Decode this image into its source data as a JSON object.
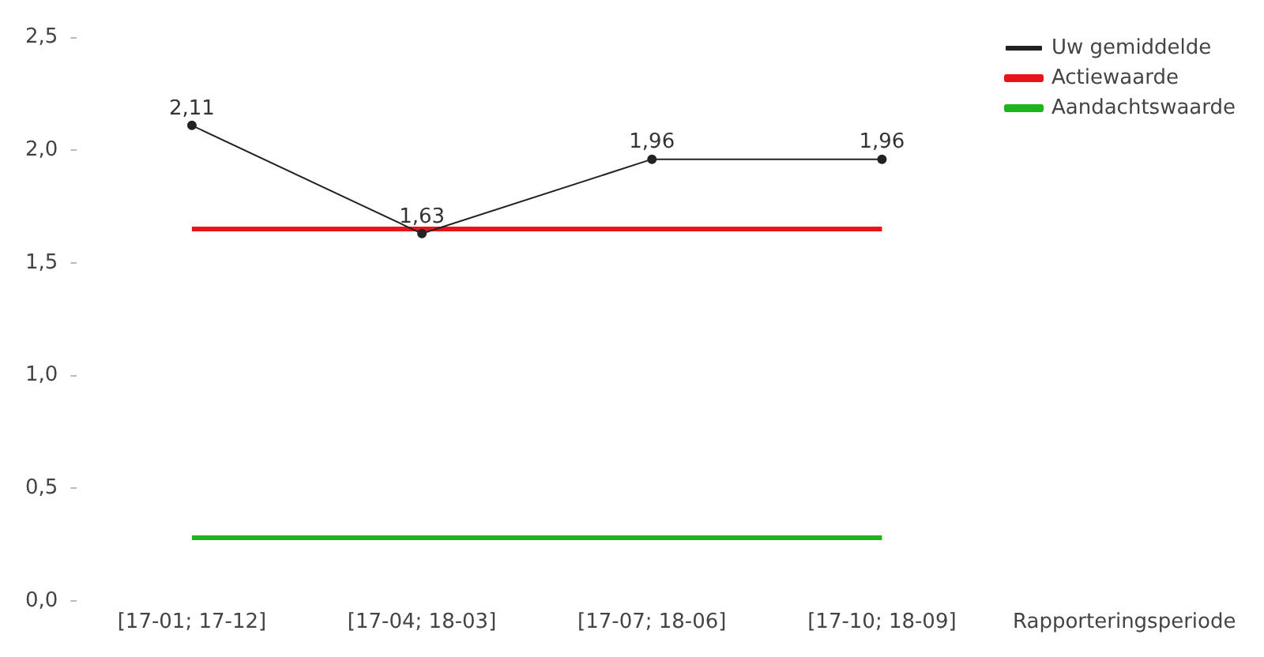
{
  "chart_data": {
    "type": "line",
    "xlabel": "Rapporteringsperiode",
    "categories": [
      "[17-01; 17-12]",
      "[17-04; 18-03]",
      "[17-07; 18-06]",
      "[17-10; 18-09]"
    ],
    "series": [
      {
        "name": "Uw gemiddelde",
        "color": "#222222",
        "values": [
          2.11,
          1.63,
          1.96,
          1.96
        ],
        "marker": "circle",
        "value_labels": [
          "2,11",
          "1,63",
          "1,96",
          "1,96"
        ]
      },
      {
        "name": "Actiewaarde",
        "color": "#e8141a",
        "values": [
          1.65,
          1.65,
          1.65,
          1.65
        ],
        "marker": "none"
      },
      {
        "name": "Aandachtswaarde",
        "color": "#1eb41e",
        "values": [
          0.28,
          0.28,
          0.28,
          0.28
        ],
        "marker": "none"
      }
    ],
    "ylim": [
      0,
      2.5
    ],
    "yticks": [
      {
        "value": 0,
        "label": "0,0"
      },
      {
        "value": 0.5,
        "label": "0,5"
      },
      {
        "value": 1,
        "label": "1,0"
      },
      {
        "value": 1.5,
        "label": "1,5"
      },
      {
        "value": 2,
        "label": "2,0"
      },
      {
        "value": 2.5,
        "label": "2,5"
      }
    ],
    "grid": false,
    "legend": "top right"
  }
}
